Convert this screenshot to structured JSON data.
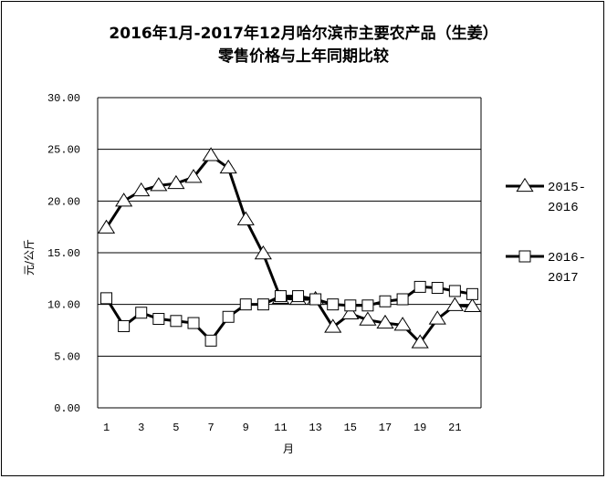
{
  "chart_data": {
    "type": "line",
    "title_line1": "2016年1月-2017年12月哈尔滨市主要农产品（生姜）",
    "title_line2": "零售价格与上年同期比较",
    "xlabel": "月",
    "ylabel": "元/公斤",
    "ylim": [
      0,
      30
    ],
    "yticks": [
      "0.00",
      "5.00",
      "10.00",
      "15.00",
      "20.00",
      "25.00",
      "30.00"
    ],
    "xticks": [
      "1",
      "3",
      "5",
      "7",
      "9",
      "11",
      "13",
      "15",
      "17",
      "19",
      "21"
    ],
    "x": [
      1,
      2,
      3,
      4,
      5,
      6,
      7,
      8,
      9,
      10,
      11,
      12,
      13,
      14,
      15,
      16,
      17,
      18,
      19,
      20,
      21,
      22
    ],
    "grid": "horizontal",
    "legend_position": "right",
    "series": [
      {
        "name_line1": "2015-",
        "name_line2": "2016",
        "marker": "triangle",
        "values": [
          17.4,
          20.0,
          21.0,
          21.5,
          21.7,
          22.3,
          24.4,
          23.2,
          18.2,
          14.9,
          10.6,
          10.5,
          10.5,
          7.8,
          9.1,
          8.5,
          8.2,
          8.0,
          6.3,
          8.6,
          9.9,
          9.8
        ]
      },
      {
        "name_line1": "2016-",
        "name_line2": "2017",
        "marker": "square",
        "values": [
          10.6,
          7.9,
          9.2,
          8.6,
          8.4,
          8.2,
          6.5,
          8.8,
          10.0,
          10.0,
          10.8,
          10.8,
          10.5,
          10.0,
          9.9,
          9.9,
          10.3,
          10.5,
          11.7,
          11.6,
          11.3,
          11.0
        ]
      }
    ],
    "colors": {
      "line": "#000000",
      "marker_fill": "#ffffff",
      "grid": "#000000"
    }
  }
}
